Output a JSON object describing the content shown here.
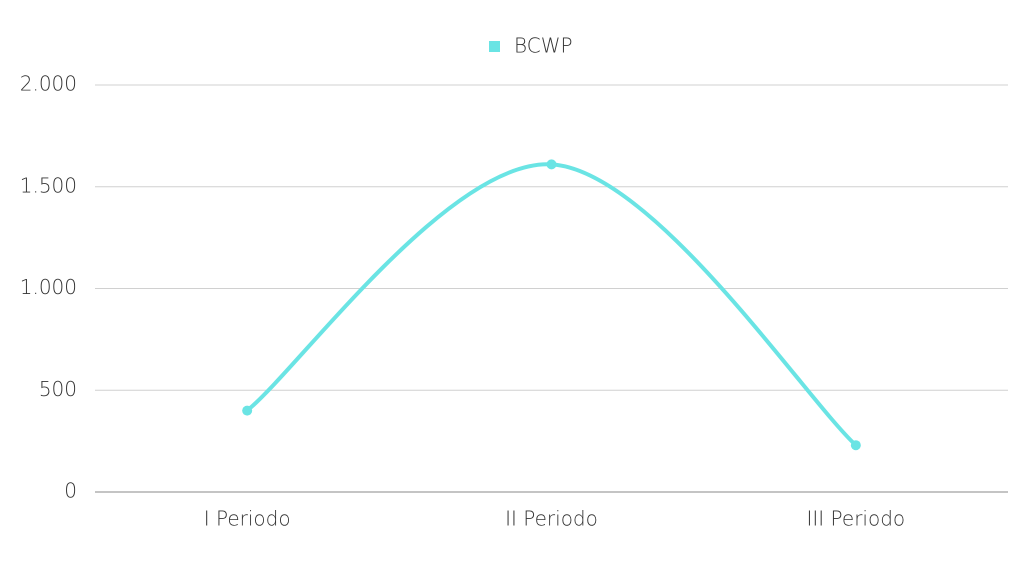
{
  "chart_data": {
    "type": "line",
    "categories": [
      "I Periodo",
      "II Periodo",
      "III Periodo"
    ],
    "series": [
      {
        "name": "BCWP",
        "color": "#6ae4e4",
        "values": [
          400,
          1610,
          230
        ]
      }
    ],
    "ylim": [
      0,
      2000
    ],
    "yticks": [
      0,
      500,
      {
        "value": 1000,
        "label": "1.000"
      },
      {
        "value": 1500,
        "label": "1.500"
      },
      {
        "value": 2000,
        "label": "2.000"
      }
    ],
    "grid": true,
    "smooth": true,
    "legend": "top"
  }
}
